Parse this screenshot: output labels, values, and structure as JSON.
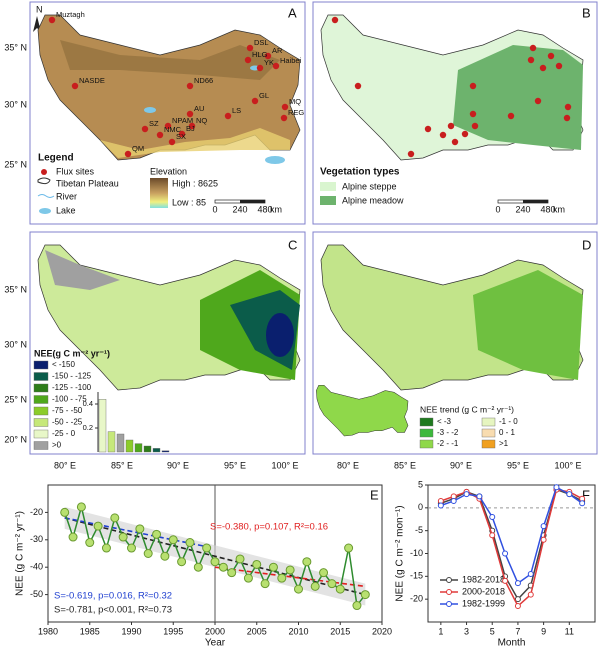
{
  "panels": {
    "labels": [
      "A",
      "B",
      "C",
      "D",
      "E",
      "F"
    ]
  },
  "maps": {
    "north": "N",
    "lat_labels": [
      "35° N",
      "30° N",
      "25° N",
      "20° N"
    ],
    "lon_labels": [
      "80° E",
      "85° E",
      "90° E",
      "95° E",
      "100° E"
    ],
    "sites": [
      "Muztagh",
      "DSL",
      "AR",
      "HLG",
      "YK",
      "Haibei",
      "NASDE",
      "ND66",
      "GL",
      "MQ",
      "REG",
      "LS",
      "AU",
      "NPAM",
      "SZ",
      "NQ",
      "NMC",
      "BJ",
      "SX",
      "QM"
    ],
    "scale": [
      "0",
      "240",
      "480",
      "km"
    ],
    "legend_a": {
      "title": "Legend",
      "items": [
        "Flux sites",
        "Tibetan Plateau",
        "River",
        "Lake"
      ],
      "elevation_title": "Elevation",
      "high": "High : 8625",
      "low": "Low : 85"
    },
    "legend_b": {
      "title": "Vegetation types",
      "items": [
        {
          "label": "Alpine steppe",
          "color": "#d9f5cf"
        },
        {
          "label": "Alpine meadow",
          "color": "#6db36d"
        }
      ]
    },
    "legend_c": {
      "title": "NEE(g C m⁻² yr⁻¹)",
      "items": [
        {
          "label": "< -150",
          "color": "#0a1f6e"
        },
        {
          "label": "-150 - -125",
          "color": "#0b5c4a"
        },
        {
          "label": "-125 - -100",
          "color": "#2e7d1a"
        },
        {
          "label": "-100 - -75",
          "color": "#4fa81c"
        },
        {
          "label": "-75 - -50",
          "color": "#8ccc2a"
        },
        {
          "label": "-50 - -25",
          "color": "#c6e87a"
        },
        {
          "label": "-25 - 0",
          "color": "#e8f7c8"
        },
        {
          "label": ">0",
          "color": "#a0a0a0"
        }
      ]
    },
    "legend_d": {
      "title": "NEE trend (g C m⁻² yr⁻¹)",
      "items": [
        {
          "label": "< -3",
          "color": "#1f7a1f"
        },
        {
          "label": "-1 - 0",
          "color": "#e6f5c0"
        },
        {
          "label": "-3 - -2",
          "color": "#3cb83c"
        },
        {
          "label": "0 - 1",
          "color": "#f8dcb0"
        },
        {
          "label": "-2 - -1",
          "color": "#8fd84a"
        },
        {
          "label": ">1",
          "color": "#f0a020"
        }
      ]
    }
  },
  "chart_data": [
    {
      "type": "line",
      "xlabel": "Year",
      "ylabel": "NEE (g C m⁻² yr⁻¹)",
      "x": [
        1982,
        1983,
        1984,
        1985,
        1986,
        1987,
        1988,
        1989,
        1990,
        1991,
        1992,
        1993,
        1994,
        1995,
        1996,
        1997,
        1998,
        1999,
        2000,
        2001,
        2002,
        2003,
        2004,
        2005,
        2006,
        2007,
        2008,
        2009,
        2010,
        2011,
        2012,
        2013,
        2014,
        2015,
        2016,
        2017,
        2018
      ],
      "series": [
        {
          "color": "#2e8b2e",
          "marker_color": "#b8e070",
          "values": [
            -20,
            -29,
            -18,
            -31,
            -25,
            -33,
            -22,
            -29,
            -33,
            -26,
            -35,
            -28,
            -36,
            -30,
            -38,
            -31,
            -40,
            -33,
            -38,
            -40,
            -42,
            -37,
            -44,
            -39,
            -46,
            -40,
            -44,
            -41,
            -48,
            -38,
            -47,
            -42,
            -46,
            -48,
            -33,
            -54,
            -50
          ]
        }
      ],
      "trends": [
        {
          "x": [
            1982,
            2018
          ],
          "values": [
            -22,
            -50
          ],
          "color": "#222222",
          "label": "S=-0.781, p<0.001, R²=0.73"
        },
        {
          "x": [
            1982,
            1999
          ],
          "values": [
            -22,
            -32.5
          ],
          "color": "#2040d0",
          "label": "S=-0.619, p=0.016, R²=0.32"
        },
        {
          "x": [
            2000,
            2018
          ],
          "values": [
            -40,
            -47
          ],
          "color": "#e02020",
          "label": "S=-0.380, p=0.107, R²=0.16"
        }
      ],
      "divider_x": 2000,
      "xlim": [
        1980,
        2020
      ],
      "xticks": [
        1980,
        1985,
        1990,
        1995,
        2000,
        2005,
        2010,
        2015,
        2020
      ],
      "ylim": [
        -60,
        -10
      ],
      "yticks": [
        -50,
        -40,
        -30,
        -20
      ]
    },
    {
      "type": "line",
      "xlabel": "Month",
      "ylabel": "NEE (g C m⁻² mon⁻¹)",
      "x": [
        1,
        2,
        3,
        4,
        5,
        6,
        7,
        8,
        9,
        10,
        11,
        12
      ],
      "series": [
        {
          "name": "1982-2018",
          "color": "#444444",
          "values": [
            1,
            2,
            3.5,
            2.5,
            -5,
            -15,
            -20,
            -17,
            -6,
            4,
            3,
            1.5
          ]
        },
        {
          "name": "2000-2018",
          "color": "#e03a3a",
          "values": [
            1.5,
            2.5,
            3.5,
            2,
            -6,
            -16,
            -21.5,
            -19,
            -7,
            4,
            3.5,
            2
          ]
        },
        {
          "name": "1982-1999",
          "color": "#3050e0",
          "values": [
            0.5,
            1.5,
            3,
            2.5,
            -2,
            -10,
            -16.5,
            -14.5,
            -4,
            4.5,
            3,
            1
          ]
        }
      ],
      "reference_y": 0,
      "xlim": [
        0,
        13
      ],
      "xticks": [
        1,
        3,
        5,
        7,
        9,
        11
      ],
      "ylim": [
        -25,
        5
      ],
      "yticks": [
        -20,
        -15,
        -10,
        -5,
        0,
        5
      ]
    },
    {
      "type": "bar",
      "values": [
        0.44,
        0.17,
        0.15,
        0.1,
        0.07,
        0.05,
        0.03,
        0.01
      ],
      "colors": [
        "#e8f7c8",
        "#c6e87a",
        "#a0a0a0",
        "#8ccc2a",
        "#4fa81c",
        "#2e7d1a",
        "#0b5c4a",
        "#0a1f6e"
      ],
      "ylim": [
        0,
        0.5
      ],
      "yticks": [
        0.2,
        0.4
      ]
    }
  ]
}
